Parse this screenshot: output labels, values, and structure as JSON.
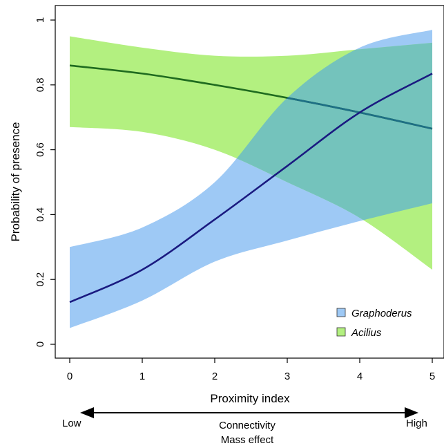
{
  "chart_data": {
    "type": "line",
    "title": "",
    "xlabel": "Proximity index",
    "ylabel": "Probability of presence",
    "xlim": [
      0,
      5
    ],
    "ylim": [
      0,
      1
    ],
    "xticks": [
      0,
      1,
      2,
      3,
      4,
      5
    ],
    "yticks": [
      0,
      0.2,
      0.4,
      0.6,
      0.8,
      1
    ],
    "ytick_labels": [
      "0",
      "0.2",
      "0.4",
      "0.6",
      "0.8",
      "1"
    ],
    "grid": false,
    "legend_position": "bottom-right",
    "x": [
      0,
      1,
      2,
      3,
      4,
      5
    ],
    "series": [
      {
        "name": "Graphoderus",
        "color": "#1a1a80",
        "band_color": "#9ec9f5",
        "y": [
          0.13,
          0.23,
          0.385,
          0.55,
          0.715,
          0.835
        ],
        "lower": [
          0.05,
          0.135,
          0.255,
          0.32,
          0.38,
          0.435
        ],
        "upper": [
          0.3,
          0.36,
          0.5,
          0.76,
          0.915,
          0.97
        ]
      },
      {
        "name": "Acilius",
        "color": "#1f6b1f",
        "band_color": "#b3f080",
        "y": [
          0.86,
          0.835,
          0.8,
          0.76,
          0.715,
          0.665
        ],
        "lower": [
          0.67,
          0.655,
          0.6,
          0.5,
          0.39,
          0.23
        ],
        "upper": [
          0.95,
          0.915,
          0.89,
          0.89,
          0.91,
          0.93
        ]
      }
    ],
    "overlap_color": "#74c3bc",
    "annotation": {
      "low_label": "Low",
      "high_label": "High",
      "center_lines": [
        "Connectivity",
        "Mass effect"
      ]
    }
  }
}
